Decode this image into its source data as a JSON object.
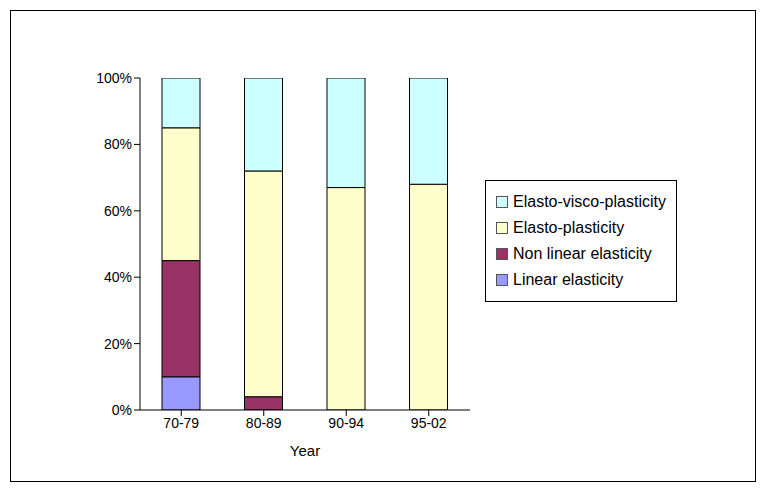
{
  "chart_data": {
    "type": "bar",
    "stacked": true,
    "x_label": "Year",
    "categories": [
      "70-79",
      "80-89",
      "90-94",
      "95-02"
    ],
    "series": [
      {
        "name": "Linear elasticity",
        "color": "#9999ff",
        "values": [
          10,
          0,
          0,
          0
        ]
      },
      {
        "name": "Non linear elasticity",
        "color": "#993366",
        "values": [
          35,
          4,
          0,
          0
        ]
      },
      {
        "name": "Elasto-plasticity",
        "color": "#ffffcc",
        "values": [
          40,
          68,
          67,
          68
        ]
      },
      {
        "name": "Elasto-visco-plasticity",
        "color": "#ccffff",
        "values": [
          15,
          28,
          33,
          32
        ]
      }
    ],
    "ylim": [
      0,
      100
    ],
    "yticks": [
      {
        "value": 0,
        "label": "0%"
      },
      {
        "value": 20,
        "label": "20%"
      },
      {
        "value": 40,
        "label": "40%"
      },
      {
        "value": 60,
        "label": "60%"
      },
      {
        "value": 80,
        "label": "80%"
      },
      {
        "value": 100,
        "label": "100%"
      }
    ],
    "legend": "right"
  }
}
